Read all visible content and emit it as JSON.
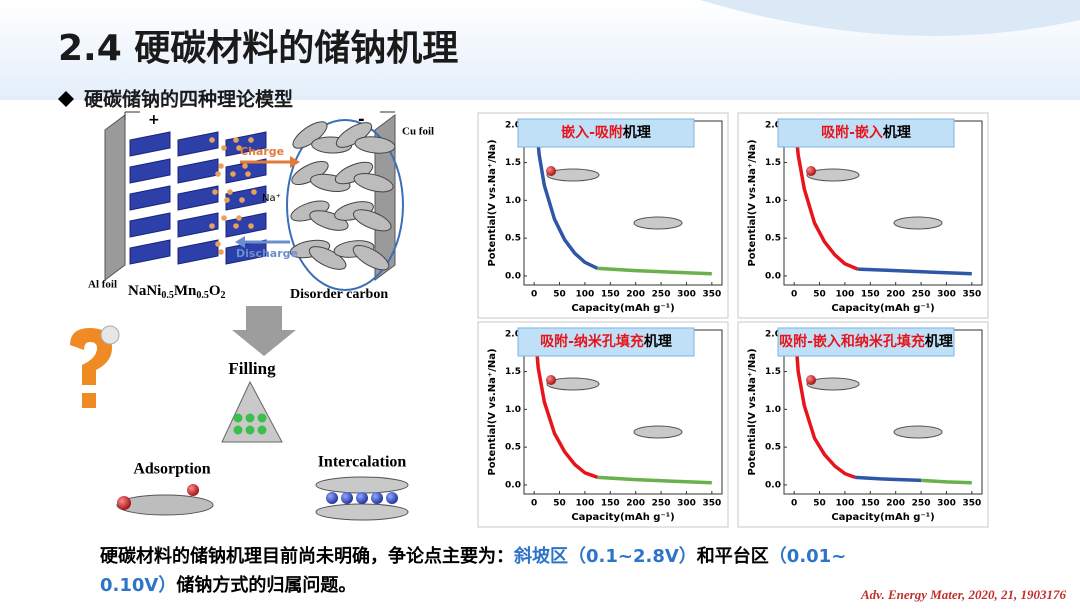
{
  "header": {
    "title": "2.4 硬碳材料的储钠机理",
    "subtitle": "硬碳储钠的四种理论模型"
  },
  "diagram": {
    "plus": "+",
    "minus": "-",
    "cu_foil": "Cu foil",
    "al_foil": "Al foil",
    "charge": "Charge",
    "ion": "Na⁺",
    "discharge": "Discharge",
    "cathode_formula": [
      "NaNi",
      "0.5",
      "Mn",
      "0.5",
      "O",
      "2"
    ],
    "anode": "Disorder carbon",
    "filling": "Filling",
    "adsorption": "Adsorption",
    "intercalation": "Intercalation"
  },
  "panels": [
    {
      "title_parts": [
        {
          "text": "嵌入-吸附",
          "color": "#e8141b"
        },
        {
          "text": "机理",
          "color": "#000000"
        }
      ],
      "x_label": "Capacity(mAh g⁻¹)",
      "y_label": "Potential(V vs.Na⁺/Na)",
      "xlim": [
        -20,
        370
      ],
      "ylim": [
        -0.12,
        2.05
      ],
      "xticks": [
        0,
        50,
        100,
        150,
        200,
        250,
        300,
        350
      ],
      "yticks": [
        {
          "value": 0,
          "label": "0.0"
        },
        {
          "value": 0.5,
          "label": "0.5"
        },
        {
          "value": 1,
          "label": "1.0"
        },
        {
          "value": 1.5,
          "label": "1.5"
        },
        {
          "value": 2,
          "label": "2.0"
        }
      ],
      "series": [
        {
          "color": "#2e57a8",
          "x": [
            5,
            10,
            20,
            40,
            60,
            80,
            100,
            125
          ],
          "y": [
            1.95,
            1.6,
            1.2,
            0.75,
            0.48,
            0.3,
            0.18,
            0.1
          ]
        },
        {
          "color": "#6ab04c",
          "x": [
            125,
            200,
            275,
            350
          ],
          "y": [
            0.1,
            0.07,
            0.05,
            0.03
          ]
        }
      ]
    },
    {
      "title_parts": [
        {
          "text": "吸附-嵌入",
          "color": "#e8141b"
        },
        {
          "text": "机理",
          "color": "#000000"
        }
      ],
      "x_label": "Capacity(mAh g⁻¹)",
      "y_label": "Potential(V vs.Na⁺/Na)",
      "xlim": [
        -20,
        370
      ],
      "ylim": [
        -0.12,
        2.05
      ],
      "xticks": [
        0,
        50,
        100,
        150,
        200,
        250,
        300,
        350
      ],
      "yticks": [
        {
          "value": 0,
          "label": "0.0"
        },
        {
          "value": 0.5,
          "label": "0.5"
        },
        {
          "value": 1,
          "label": "1.0"
        },
        {
          "value": 1.5,
          "label": "1.5"
        },
        {
          "value": 2,
          "label": "2.0"
        }
      ],
      "series": [
        {
          "color": "#e8141b",
          "x": [
            3,
            8,
            20,
            40,
            60,
            80,
            100,
            125
          ],
          "y": [
            1.95,
            1.6,
            1.15,
            0.7,
            0.45,
            0.28,
            0.16,
            0.09
          ]
        },
        {
          "color": "#2e57a8",
          "x": [
            125,
            200,
            275,
            350
          ],
          "y": [
            0.09,
            0.07,
            0.05,
            0.03
          ]
        }
      ]
    },
    {
      "title_parts": [
        {
          "text": "吸附-纳米孔填充",
          "color": "#e8141b"
        },
        {
          "text": "机理",
          "color": "#000000"
        }
      ],
      "x_label": "Capacity(mAh g⁻¹)",
      "y_label": "Potential(V vs.Na⁺/Na)",
      "xlim": [
        -20,
        370
      ],
      "ylim": [
        -0.12,
        2.05
      ],
      "xticks": [
        0,
        50,
        100,
        150,
        200,
        250,
        300,
        350
      ],
      "yticks": [
        {
          "value": 0,
          "label": "0.0"
        },
        {
          "value": 0.5,
          "label": "0.5"
        },
        {
          "value": 1,
          "label": "1.0"
        },
        {
          "value": 1.5,
          "label": "1.5"
        },
        {
          "value": 2,
          "label": "2.0"
        }
      ],
      "series": [
        {
          "color": "#e8141b",
          "x": [
            3,
            8,
            20,
            40,
            60,
            80,
            100,
            125
          ],
          "y": [
            1.95,
            1.55,
            1.1,
            0.68,
            0.44,
            0.27,
            0.16,
            0.1
          ]
        },
        {
          "color": "#6ab04c",
          "x": [
            125,
            200,
            275,
            350
          ],
          "y": [
            0.1,
            0.07,
            0.05,
            0.03
          ]
        }
      ]
    },
    {
      "title_parts": [
        {
          "text": "吸附-嵌入和纳米孔填充",
          "color": "#e8141b"
        },
        {
          "text": "机理",
          "color": "#000000"
        }
      ],
      "x_label": "Capacity(mAh g⁻¹)",
      "y_label": "Potential(V vs.Na⁺/Na)",
      "xlim": [
        -20,
        370
      ],
      "ylim": [
        -0.12,
        2.05
      ],
      "xticks": [
        0,
        50,
        100,
        150,
        200,
        250,
        300,
        350
      ],
      "yticks": [
        {
          "value": 0,
          "label": "0.0"
        },
        {
          "value": 0.5,
          "label": "0.5"
        },
        {
          "value": 1,
          "label": "1.0"
        },
        {
          "value": 1.5,
          "label": "1.5"
        },
        {
          "value": 2,
          "label": "2.0"
        }
      ],
      "series": [
        {
          "color": "#e8141b",
          "x": [
            3,
            8,
            20,
            40,
            60,
            80,
            100,
            120
          ],
          "y": [
            1.95,
            1.5,
            1.05,
            0.62,
            0.4,
            0.25,
            0.15,
            0.1
          ]
        },
        {
          "color": "#2e57a8",
          "x": [
            120,
            170,
            210,
            250
          ],
          "y": [
            0.1,
            0.08,
            0.07,
            0.06
          ]
        },
        {
          "color": "#6ab04c",
          "x": [
            250,
            300,
            350
          ],
          "y": [
            0.06,
            0.04,
            0.03
          ]
        }
      ]
    }
  ],
  "footer": {
    "lines": [
      [
        {
          "text": "硬碳材料的储钠机理目前尚未明确，争论点主要为：",
          "color": "#000000"
        },
        {
          "text": "斜坡区（0.1~2.8V）",
          "color": "#2e75c7"
        },
        {
          "text": "和平台区",
          "color": "#000000"
        },
        {
          "text": "（0.01~",
          "color": "#2e75c7"
        }
      ],
      [
        {
          "text": "0.10V）",
          "color": "#2e75c7"
        },
        {
          "text": "储钠方式的归属问题。",
          "color": "#000000"
        }
      ]
    ],
    "citation": "Adv. Energy Mater, 2020, 21, 1903176"
  }
}
